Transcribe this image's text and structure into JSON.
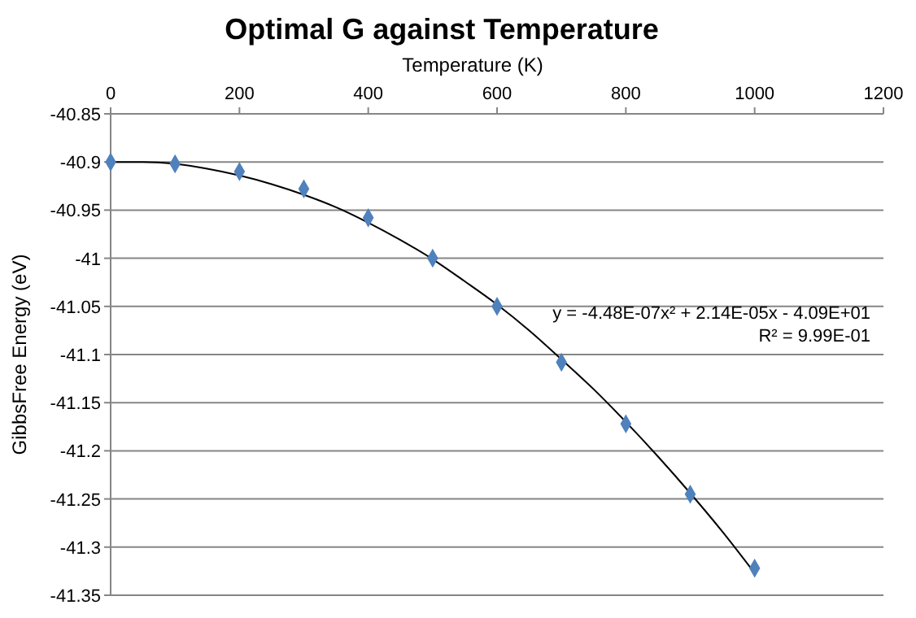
{
  "chart_data": {
    "type": "scatter",
    "title": "Optimal G against Temperature",
    "xlabel": "Temperature (K)",
    "ylabel": "GibbsFree Energy (eV)",
    "xlim": [
      0,
      1200
    ],
    "xticks": [
      0,
      200,
      400,
      600,
      800,
      1000,
      1200
    ],
    "ylim": [
      -41.35,
      -40.85
    ],
    "yticks": [
      -41.35,
      -41.3,
      -41.25,
      -41.2,
      -41.15,
      -41.1,
      -41.05,
      -41,
      -40.95,
      -40.9,
      -40.85
    ],
    "grid": "y",
    "marker": "diamond",
    "series": [
      {
        "color": "#4f81bd",
        "x": [
          0,
          100,
          200,
          300,
          400,
          500,
          600,
          700,
          800,
          900,
          1000
        ],
        "values": [
          -40.9,
          -40.902,
          -40.91,
          -40.928,
          -40.958,
          -41.0,
          -41.05,
          -41.108,
          -41.172,
          -41.245,
          -41.322
        ]
      },
      {
        "type": "line",
        "color": "#000000",
        "marker": "none",
        "x": [
          0,
          50,
          100,
          150,
          200,
          250,
          300,
          350,
          400,
          450,
          500,
          550,
          600,
          650,
          700,
          750,
          800,
          850,
          900,
          950,
          1000
        ],
        "values": [
          -40.9,
          -40.9,
          -40.902,
          -40.907,
          -40.914,
          -40.923,
          -40.934,
          -40.947,
          -40.963,
          -40.981,
          -41.001,
          -41.024,
          -41.048,
          -41.075,
          -41.105,
          -41.136,
          -41.17,
          -41.206,
          -41.244,
          -41.284,
          -41.327
        ]
      }
    ],
    "annotations": [
      "y = -4.48E-07x² + 2.14E-05x - 4.09E+01",
      "R² = 9.99E-01"
    ]
  }
}
